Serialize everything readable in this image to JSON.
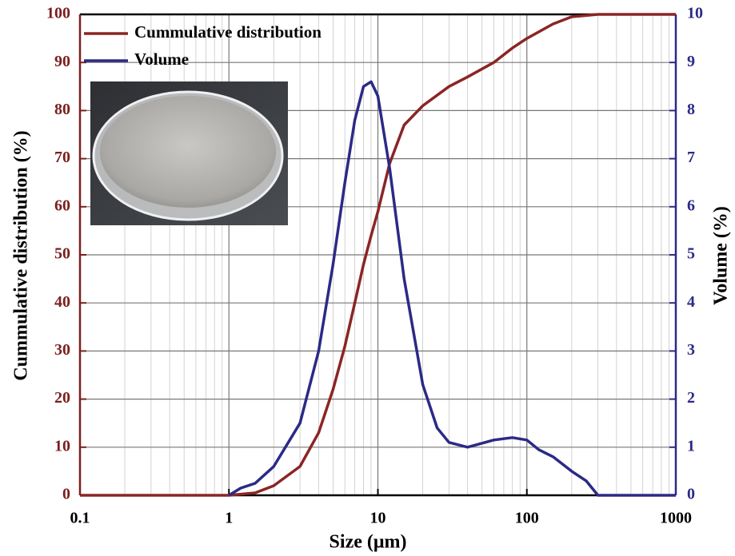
{
  "chart_data": {
    "type": "line",
    "xlabel": "Size (μm)",
    "ylabel": "Cummulative distribution (%)",
    "y2label": "Volume (%)",
    "xscale": "log",
    "grid": true,
    "minor_grid": true,
    "legend": "upper left",
    "xlim": [
      0.1,
      1000
    ],
    "xticks": [
      0.1,
      1,
      10,
      100,
      1000
    ],
    "ylim": [
      0,
      100
    ],
    "yticks": [
      0,
      10,
      20,
      30,
      40,
      50,
      60,
      70,
      80,
      90,
      100
    ],
    "y2lim": [
      0,
      10
    ],
    "y2ticks": [
      0,
      1,
      2,
      3,
      4,
      5,
      6,
      7,
      8,
      9,
      10
    ],
    "ycolor": "#7a1f1f",
    "y2color": "#2b2a86",
    "series": [
      {
        "name": "Cummulative distribution",
        "color": "#8b2525",
        "x": [
          0.1,
          1,
          1.5,
          2,
          3,
          4,
          5,
          6,
          7,
          8,
          9,
          10,
          12,
          15,
          20,
          30,
          40,
          60,
          80,
          100,
          150,
          200,
          300,
          1000
        ],
        "values": [
          0,
          0,
          0.5,
          2,
          6,
          13,
          22,
          31,
          40,
          48,
          54,
          59,
          69,
          77,
          81,
          85,
          87,
          90,
          93,
          95,
          98,
          99.5,
          100,
          100
        ]
      },
      {
        "name": "Volume",
        "color": "#2b2a86",
        "axis": "y2",
        "x": [
          1,
          1.2,
          1.5,
          2,
          3,
          4,
          5,
          6,
          7,
          8,
          9,
          10,
          12,
          15,
          20,
          25,
          30,
          40,
          60,
          80,
          100,
          120,
          150,
          200,
          250,
          300,
          1000
        ],
        "values": [
          0,
          0.15,
          0.25,
          0.6,
          1.5,
          3,
          4.8,
          6.5,
          7.8,
          8.5,
          8.6,
          8.3,
          6.8,
          4.5,
          2.3,
          1.4,
          1.1,
          1.0,
          1.15,
          1.2,
          1.15,
          0.95,
          0.8,
          0.5,
          0.3,
          0,
          0
        ]
      }
    ]
  }
}
